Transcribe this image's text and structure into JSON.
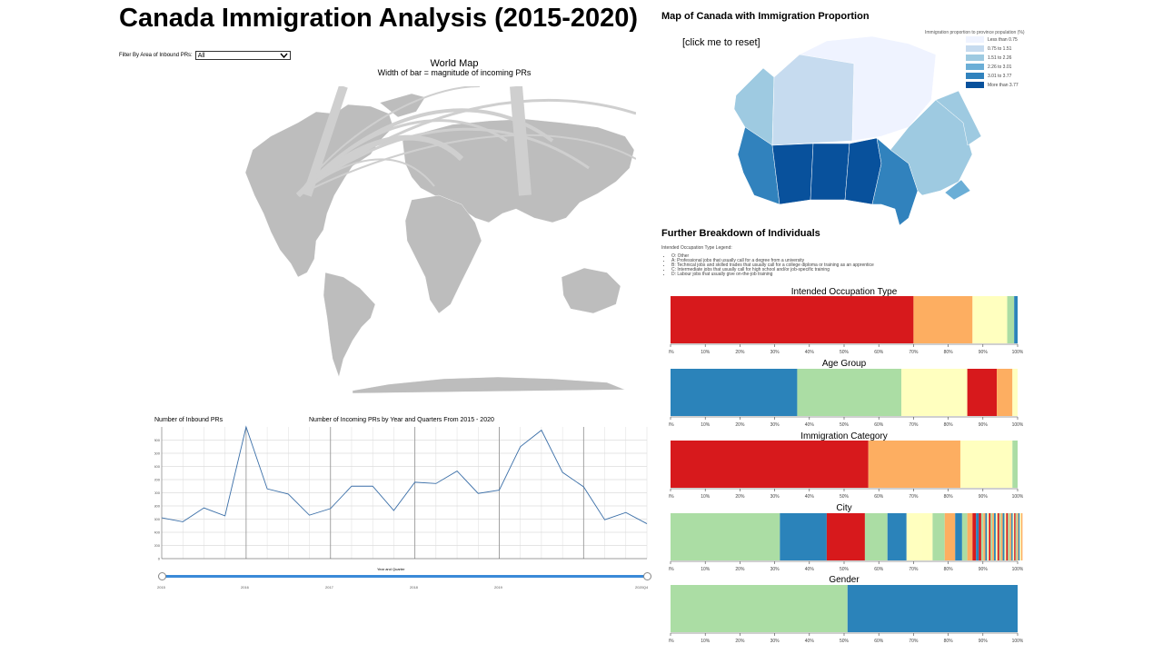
{
  "header": {
    "title": "Canada Immigration Analysis (2015-2020)"
  },
  "filter": {
    "label": "Filter By Area of Inbound PRs:",
    "selected": "All"
  },
  "world_map": {
    "title": "World Map",
    "subtitle": "Width of bar = magnitude of incoming PRs"
  },
  "canada_map": {
    "title": "Map of Canada with Immigration Proportion",
    "reset_label": "[click me to reset]",
    "legend_title": "Immigration proportion to province population (%)",
    "legend": [
      {
        "label": "Less than 0.75",
        "color": "#eff3ff"
      },
      {
        "label": "0.75 to 1.51",
        "color": "#c6dbef"
      },
      {
        "label": "1.51 to 2.26",
        "color": "#9ecae1"
      },
      {
        "label": "2.26 to 3.01",
        "color": "#6baed6"
      },
      {
        "label": "3.01 to 3.77",
        "color": "#3182bd"
      },
      {
        "label": "More than 3.77",
        "color": "#08519c"
      }
    ]
  },
  "breakdown": {
    "title": "Further Breakdown of Individuals",
    "legend_title": "Intended Occupation Type Legend:",
    "legend_items": [
      "O: Other",
      "A: Professional jobs that usually call for a degree from a university",
      "B: Technical jobs and skilled trades that usually call for a college diploma or training as an apprentice",
      "C: Intermediate jobs that usually call for high school and/or job-specific training",
      "D: Labour jobs that usually give on-the-job training"
    ]
  },
  "line_chart": {
    "ylabel": "Number of Inbound PRs",
    "title": "Number of Incoming PRs by Year and Quarters From 2015 - 2020",
    "xlabel": "Year and Quarter",
    "slider_ticks": [
      "2015",
      "2016",
      "2017",
      "2018",
      "2019",
      "2020Q4"
    ]
  },
  "chart_data": [
    {
      "type": "line",
      "title": "Number of Incoming PRs by Year and Quarters From 2015 - 2020",
      "xlabel": "Year and Quarter",
      "ylabel": "Number of Inbound PRs",
      "x": [
        "2015Q1",
        "2015Q2",
        "2015Q3",
        "2015Q4",
        "2016Q1",
        "2016Q2",
        "2016Q3",
        "2016Q4",
        "2017Q1",
        "2017Q2",
        "2017Q3",
        "2017Q4",
        "2018Q1",
        "2018Q2",
        "2018Q3",
        "2018Q4",
        "2019Q1",
        "2019Q2",
        "2019Q3",
        "2019Q4",
        "2020Q1",
        "2020Q2",
        "2020Q3",
        "2020Q4"
      ],
      "values": [
        620,
        560,
        770,
        650,
        2000,
        1060,
        980,
        660,
        760,
        1100,
        1100,
        730,
        1160,
        1140,
        1330,
        990,
        1040,
        1700,
        1950,
        1310,
        1090,
        590,
        700,
        530
      ],
      "yticks": [
        0,
        200,
        400,
        600,
        800,
        1000,
        1200,
        1400,
        1600,
        1800
      ],
      "ylim": [
        0,
        2000
      ],
      "grid": true
    },
    {
      "type": "bar",
      "title": "Intended Occupation Type",
      "stacked": true,
      "segments": [
        {
          "percent": 70,
          "color": "#d7191c"
        },
        {
          "percent": 17,
          "color": "#fdae61"
        },
        {
          "percent": 10,
          "color": "#ffffbf"
        },
        {
          "percent": 2,
          "color": "#abdda4"
        },
        {
          "percent": 1,
          "color": "#2b83ba"
        }
      ],
      "xticks": [
        "0%",
        "10%",
        "20%",
        "30%",
        "40%",
        "50%",
        "60%",
        "70%",
        "80%",
        "90%",
        "100%"
      ]
    },
    {
      "type": "bar",
      "title": "Age Group",
      "stacked": true,
      "segments": [
        {
          "percent": 36.5,
          "color": "#2b83ba"
        },
        {
          "percent": 30,
          "color": "#abdda4"
        },
        {
          "percent": 19,
          "color": "#ffffbf"
        },
        {
          "percent": 8.5,
          "color": "#d7191c"
        },
        {
          "percent": 4.5,
          "color": "#fdae61"
        },
        {
          "percent": 1.5,
          "color": "#ffffbf"
        }
      ],
      "xticks": [
        "0%",
        "10%",
        "20%",
        "30%",
        "40%",
        "50%",
        "60%",
        "70%",
        "80%",
        "90%",
        "100%"
      ]
    },
    {
      "type": "bar",
      "title": "Immigration Category",
      "stacked": true,
      "segments": [
        {
          "percent": 57,
          "color": "#d7191c"
        },
        {
          "percent": 26.5,
          "color": "#fdae61"
        },
        {
          "percent": 15,
          "color": "#ffffbf"
        },
        {
          "percent": 1.5,
          "color": "#abdda4"
        }
      ],
      "xticks": [
        "0%",
        "10%",
        "20%",
        "30%",
        "40%",
        "50%",
        "60%",
        "70%",
        "80%",
        "90%",
        "100%"
      ]
    },
    {
      "type": "bar",
      "title": "City",
      "stacked": true,
      "segments": [
        {
          "percent": 31.5,
          "color": "#abdda4"
        },
        {
          "percent": 13.5,
          "color": "#2b83ba"
        },
        {
          "percent": 11,
          "color": "#d7191c"
        },
        {
          "percent": 6.5,
          "color": "#abdda4"
        },
        {
          "percent": 5.5,
          "color": "#2b83ba"
        },
        {
          "percent": 4,
          "color": "#ffffbf"
        },
        {
          "percent": 3.5,
          "color": "#ffffbf"
        },
        {
          "percent": 3.5,
          "color": "#abdda4"
        },
        {
          "percent": 3,
          "color": "#fdae61"
        },
        {
          "percent": 2,
          "color": "#2b83ba"
        },
        {
          "percent": 1.5,
          "color": "#abdda4"
        },
        {
          "percent": 1.5,
          "color": "#fdae61"
        },
        {
          "percent": 1,
          "color": "#d7191c"
        },
        {
          "percent": 0.8,
          "color": "#2b83ba"
        },
        {
          "percent": 0.7,
          "color": "#d7191c"
        },
        {
          "percent": 0.6,
          "color": "#abdda4"
        },
        {
          "percent": 0.6,
          "color": "#fdae61"
        },
        {
          "percent": 0.5,
          "color": "#2b83ba"
        },
        {
          "percent": 0.5,
          "color": "#ffffbf"
        },
        {
          "percent": 0.5,
          "color": "#d7191c"
        },
        {
          "percent": 0.5,
          "color": "#abdda4"
        },
        {
          "percent": 0.5,
          "color": "#fdae61"
        },
        {
          "percent": 0.5,
          "color": "#2b83ba"
        },
        {
          "percent": 0.5,
          "color": "#ffffbf"
        },
        {
          "percent": 0.5,
          "color": "#d7191c"
        },
        {
          "percent": 0.5,
          "color": "#abdda4"
        },
        {
          "percent": 0.5,
          "color": "#fdae61"
        },
        {
          "percent": 0.5,
          "color": "#2b83ba"
        },
        {
          "percent": 0.5,
          "color": "#ffffbf"
        },
        {
          "percent": 0.5,
          "color": "#d7191c"
        },
        {
          "percent": 0.5,
          "color": "#abdda4"
        },
        {
          "percent": 0.5,
          "color": "#fdae61"
        },
        {
          "percent": 0.4,
          "color": "#2b83ba"
        },
        {
          "percent": 0.4,
          "color": "#ffffbf"
        },
        {
          "percent": 0.4,
          "color": "#d7191c"
        },
        {
          "percent": 0.4,
          "color": "#abdda4"
        },
        {
          "percent": 0.4,
          "color": "#fdae61"
        },
        {
          "percent": 0.4,
          "color": "#2b83ba"
        },
        {
          "percent": 0.4,
          "color": "#ffffbf"
        },
        {
          "percent": 0.4,
          "color": "#fdae61"
        }
      ],
      "xticks": [
        "0%",
        "10%",
        "20%",
        "30%",
        "40%",
        "50%",
        "60%",
        "70%",
        "80%",
        "90%",
        "100%"
      ]
    },
    {
      "type": "bar",
      "title": "Gender",
      "stacked": true,
      "segments": [
        {
          "percent": 51,
          "color": "#abdda4"
        },
        {
          "percent": 49,
          "color": "#2b83ba"
        }
      ],
      "xticks": [
        "0%",
        "10%",
        "20%",
        "30%",
        "40%",
        "50%",
        "60%",
        "70%",
        "80%",
        "90%",
        "100%"
      ]
    }
  ]
}
